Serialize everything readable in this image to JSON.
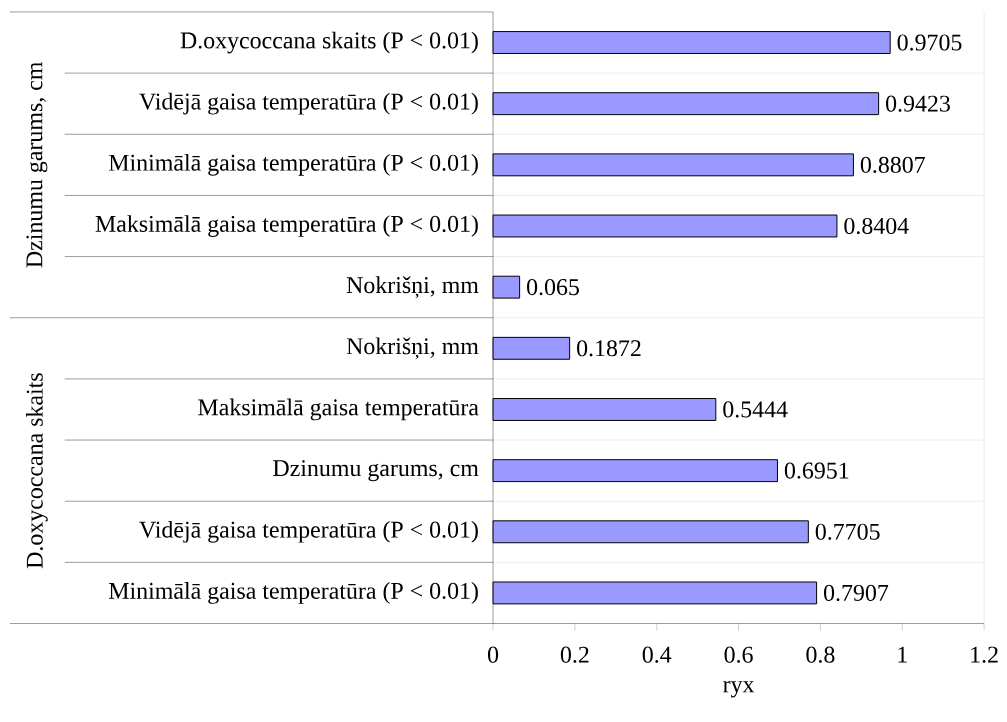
{
  "chart_data": {
    "type": "bar",
    "orientation": "horizontal",
    "xlabel": "ryx",
    "categories": [
      "D.oxycoccana skaits (P < 0.01)",
      "Vidējā gaisa temperatūra (P < 0.01)",
      "Minimālā gaisa temperatūra (P < 0.01)",
      "Maksimālā gaisa temperatūra (P < 0.01)",
      "Nokrišņi, mm",
      "Nokrišņi, mm",
      "Maksimālā gaisa temperatūra",
      "Dzinumu garums, cm",
      "Vidējā gaisa temperatūra (P < 0.01)",
      "Minimālā gaisa temperatūra (P < 0.01)"
    ],
    "values": [
      0.9705,
      0.9423,
      0.8807,
      0.8404,
      0.065,
      0.1872,
      0.5444,
      0.6951,
      0.7705,
      0.7907
    ],
    "color": "#9999ff",
    "data_labels": true,
    "grid": "y",
    "xlim": [
      0,
      1.2
    ],
    "xticks": [
      0,
      0.2,
      0.4,
      0.6,
      0.8,
      1,
      1.2
    ],
    "annotations": [
      "Dzinumu garums, cm",
      "D.oxycoccana skaits"
    ]
  }
}
